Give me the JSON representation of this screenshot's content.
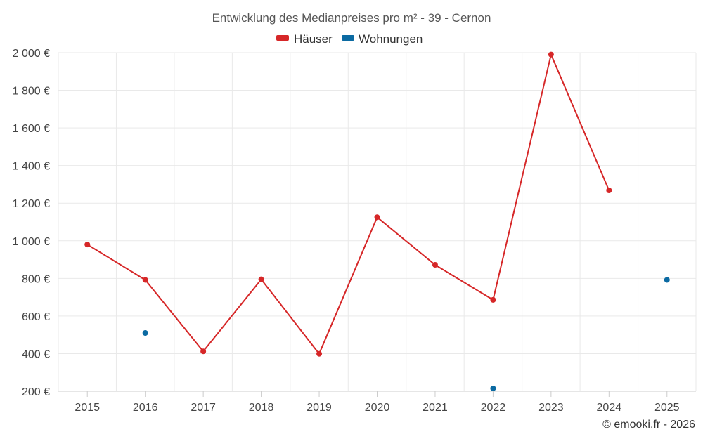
{
  "chart_data": {
    "type": "line",
    "title": "Entwicklung des Medianpreises pro m² - 39 - Cernon",
    "categories": [
      "2015",
      "2016",
      "2017",
      "2018",
      "2019",
      "2020",
      "2021",
      "2022",
      "2023",
      "2024",
      "2025"
    ],
    "y_ticks": [
      "200 €",
      "400 €",
      "600 €",
      "800 €",
      "1 000 €",
      "1 200 €",
      "1 400 €",
      "1 600 €",
      "1 800 €",
      "2 000 €"
    ],
    "ylim": [
      200,
      2000
    ],
    "series": [
      {
        "name": "Häuser",
        "color": "#d62728",
        "style": "line",
        "values": [
          980,
          792,
          412,
          795,
          399,
          1125,
          872,
          686,
          1990,
          1268,
          null
        ]
      },
      {
        "name": "Wohnungen",
        "color": "#0b6aa2",
        "style": "points",
        "values": [
          null,
          510,
          null,
          null,
          null,
          null,
          null,
          215,
          null,
          null,
          792
        ]
      }
    ],
    "legend_position": "top-center",
    "credit": "© emooki.fr - 2026"
  }
}
